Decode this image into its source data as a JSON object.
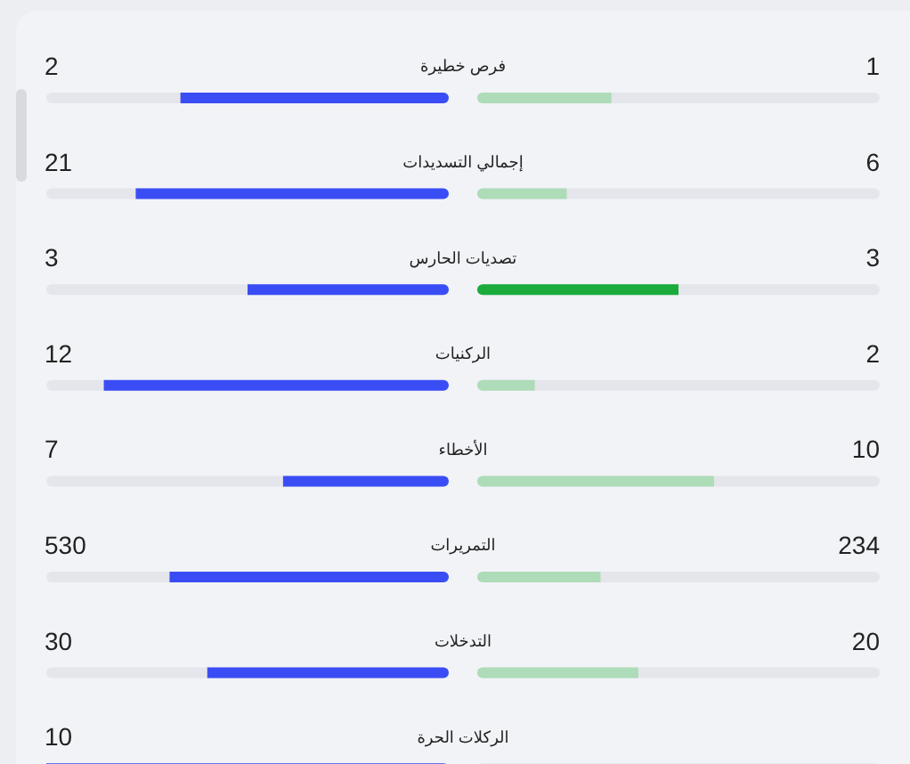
{
  "chart_data": {
    "type": "other",
    "categories": [
      "فرص خطيرة",
      "إجمالي التسديدات",
      "تصديات الحارس",
      "الركنيات",
      "الأخطاء",
      "التمريرات",
      "التدخلات",
      "الركلات الحرة"
    ],
    "series": [
      {
        "values": [
          2,
          21,
          3,
          12,
          7,
          530,
          30,
          10
        ],
        "color": "#3a4df5"
      },
      {
        "values": [
          1,
          6,
          3,
          2,
          10,
          234,
          20,
          null
        ],
        "colors": [
          "#aedbb8",
          "#aedbb8",
          "#1aab3b",
          "#aedbb8",
          "#aedbb8",
          "#aedbb8",
          "#aedbb8",
          "#aedbb8"
        ]
      }
    ],
    "data_labels": true
  }
}
